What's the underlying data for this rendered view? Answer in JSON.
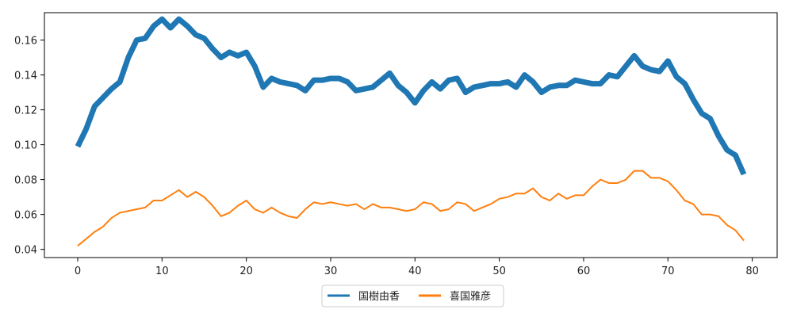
{
  "chart_data": {
    "type": "line",
    "title": "",
    "xlabel": "",
    "ylabel": "",
    "xlim": [
      -3.95,
      82.95
    ],
    "ylim": [
      0.0353,
      0.1757
    ],
    "x_ticks": [
      0,
      10,
      20,
      30,
      40,
      50,
      60,
      70,
      80
    ],
    "y_ticks": [
      0.04,
      0.06,
      0.08,
      0.1,
      0.12,
      0.14,
      0.16
    ],
    "y_tick_labels": [
      "0.04",
      "0.06",
      "0.08",
      "0.10",
      "0.12",
      "0.14",
      "0.16"
    ],
    "grid": false,
    "legend_position": "bottom-center outside",
    "series": [
      {
        "name": "国樹由香",
        "color": "#1f77b4",
        "line_width": "thick",
        "x": [
          0,
          1,
          2,
          3,
          4,
          5,
          6,
          7,
          8,
          9,
          10,
          11,
          12,
          13,
          14,
          15,
          16,
          17,
          18,
          19,
          20,
          21,
          22,
          23,
          24,
          25,
          26,
          27,
          28,
          29,
          30,
          31,
          32,
          33,
          34,
          35,
          36,
          37,
          38,
          39,
          40,
          41,
          42,
          43,
          44,
          45,
          46,
          47,
          48,
          49,
          50,
          51,
          52,
          53,
          54,
          55,
          56,
          57,
          58,
          59,
          60,
          61,
          62,
          63,
          64,
          65,
          66,
          67,
          68,
          69,
          70,
          71,
          72,
          73,
          74,
          75,
          76,
          77,
          78,
          79
        ],
        "values": [
          0.099,
          0.109,
          0.122,
          0.127,
          0.132,
          0.136,
          0.15,
          0.16,
          0.161,
          0.168,
          0.172,
          0.167,
          0.172,
          0.168,
          0.163,
          0.161,
          0.155,
          0.15,
          0.153,
          0.151,
          0.153,
          0.145,
          0.133,
          0.138,
          0.136,
          0.135,
          0.134,
          0.131,
          0.137,
          0.137,
          0.138,
          0.138,
          0.136,
          0.131,
          0.132,
          0.133,
          0.137,
          0.141,
          0.134,
          0.13,
          0.124,
          0.131,
          0.136,
          0.132,
          0.137,
          0.138,
          0.13,
          0.133,
          0.134,
          0.135,
          0.135,
          0.136,
          0.133,
          0.14,
          0.136,
          0.13,
          0.133,
          0.134,
          0.134,
          0.137,
          0.136,
          0.135,
          0.135,
          0.14,
          0.139,
          0.145,
          0.151,
          0.145,
          0.143,
          0.142,
          0.148,
          0.139,
          0.135,
          0.126,
          0.118,
          0.115,
          0.105,
          0.097,
          0.094,
          0.083
        ]
      },
      {
        "name": "喜国雅彦",
        "color": "#ff7f0e",
        "line_width": "normal",
        "x": [
          0,
          1,
          2,
          3,
          4,
          5,
          6,
          7,
          8,
          9,
          10,
          11,
          12,
          13,
          14,
          15,
          16,
          17,
          18,
          19,
          20,
          21,
          22,
          23,
          24,
          25,
          26,
          27,
          28,
          29,
          30,
          31,
          32,
          33,
          34,
          35,
          36,
          37,
          38,
          39,
          40,
          41,
          42,
          43,
          44,
          45,
          46,
          47,
          48,
          49,
          50,
          51,
          52,
          53,
          54,
          55,
          56,
          57,
          58,
          59,
          60,
          61,
          62,
          63,
          64,
          65,
          66,
          67,
          68,
          69,
          70,
          71,
          72,
          73,
          74,
          75,
          76,
          77,
          78,
          79
        ],
        "values": [
          0.042,
          0.046,
          0.05,
          0.053,
          0.058,
          0.061,
          0.062,
          0.063,
          0.064,
          0.068,
          0.068,
          0.071,
          0.074,
          0.07,
          0.073,
          0.07,
          0.065,
          0.059,
          0.061,
          0.065,
          0.068,
          0.063,
          0.061,
          0.064,
          0.061,
          0.059,
          0.058,
          0.063,
          0.067,
          0.066,
          0.067,
          0.066,
          0.065,
          0.066,
          0.063,
          0.066,
          0.064,
          0.064,
          0.063,
          0.062,
          0.063,
          0.067,
          0.066,
          0.062,
          0.063,
          0.067,
          0.066,
          0.062,
          0.064,
          0.066,
          0.069,
          0.07,
          0.072,
          0.072,
          0.075,
          0.07,
          0.068,
          0.072,
          0.069,
          0.071,
          0.071,
          0.076,
          0.08,
          0.078,
          0.078,
          0.08,
          0.085,
          0.085,
          0.081,
          0.081,
          0.079,
          0.074,
          0.068,
          0.066,
          0.06,
          0.06,
          0.059,
          0.054,
          0.051,
          0.045
        ]
      }
    ]
  }
}
